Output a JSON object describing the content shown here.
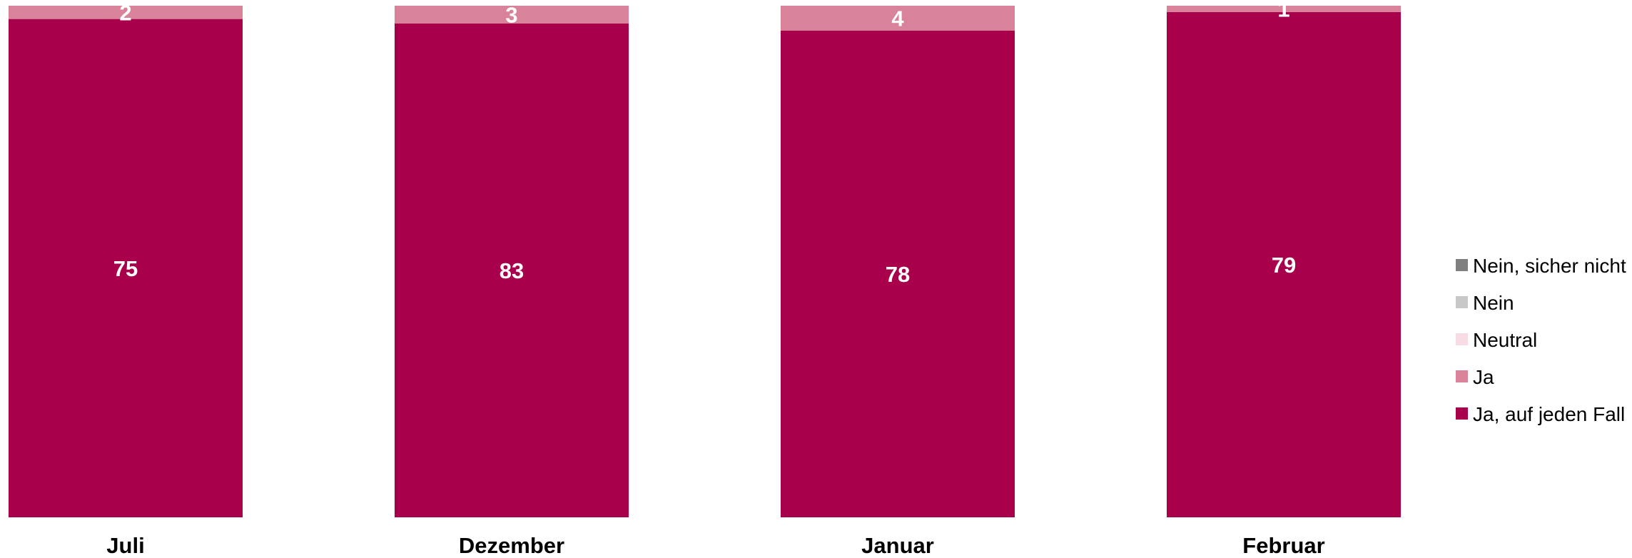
{
  "chart_data": {
    "type": "bar",
    "stacked": true,
    "categories": [
      "Juli",
      "Dezember",
      "Januar",
      "Februar"
    ],
    "series": [
      {
        "name": "Ja, auf jeden Fall",
        "color": "#A8004A",
        "values": [
          75,
          83,
          78,
          79
        ]
      },
      {
        "name": "Ja",
        "color": "#D88399",
        "values": [
          2,
          3,
          4,
          1
        ]
      },
      {
        "name": "Neutral",
        "color": "#F7DCE4",
        "values": [
          0,
          0,
          0,
          0
        ]
      },
      {
        "name": "Nein",
        "color": "#C8C8C8",
        "values": [
          0,
          0,
          0,
          0
        ]
      },
      {
        "name": "Nein, sicher nicht",
        "color": "#808080",
        "values": [
          0,
          0,
          0,
          0
        ]
      }
    ],
    "legend_order": [
      "Nein, sicher nicht",
      "Nein",
      "Neutral",
      "Ja",
      "Ja, auf jeden Fall"
    ],
    "legend_position": "right",
    "grid": false,
    "title": "",
    "xlabel": "",
    "ylabel": ""
  }
}
